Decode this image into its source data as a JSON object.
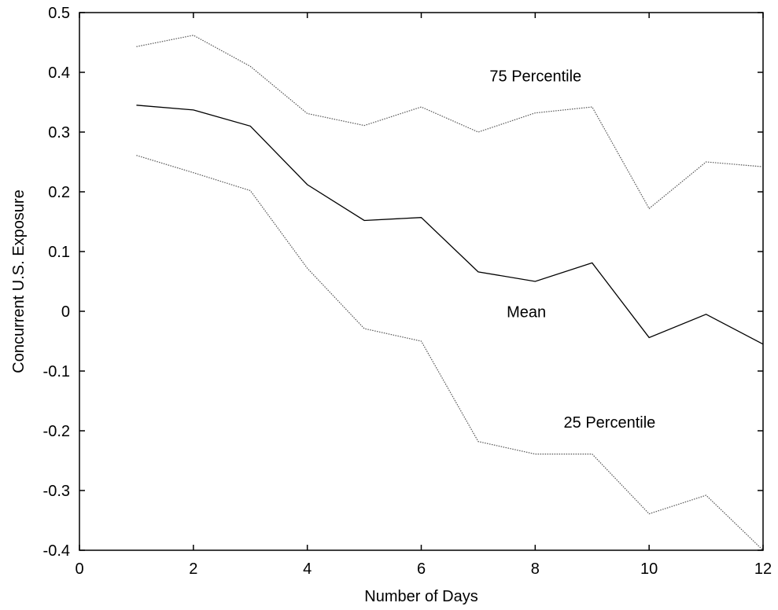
{
  "chart_data": {
    "type": "line",
    "title": "",
    "xlabel": "Number of Days",
    "ylabel": "Concurrent U.S. Exposure",
    "xlim": [
      0,
      12
    ],
    "ylim": [
      -0.4,
      0.5
    ],
    "xticks": [
      0,
      2,
      4,
      6,
      8,
      10,
      12
    ],
    "yticks": [
      0.5,
      0.4,
      0.3,
      0.2,
      0.1,
      0,
      -0.1,
      -0.2,
      -0.3,
      -0.4
    ],
    "grid": false,
    "legend": "none",
    "x": [
      1,
      2,
      3,
      4,
      5,
      6,
      7,
      8,
      9,
      10,
      11,
      12
    ],
    "series": [
      {
        "name": "75 Percentile",
        "style": "dotted",
        "color": "#555555",
        "values": [
          0.443,
          0.462,
          0.41,
          0.331,
          0.311,
          0.342,
          0.3,
          0.332,
          0.342,
          0.172,
          0.25,
          0.242
        ]
      },
      {
        "name": "Mean",
        "style": "solid",
        "color": "#000000",
        "values": [
          0.345,
          0.337,
          0.31,
          0.212,
          0.152,
          0.157,
          0.066,
          0.05,
          0.081,
          -0.044,
          -0.005,
          -0.055
        ]
      },
      {
        "name": "25 Percentile",
        "style": "dotted",
        "color": "#555555",
        "values": [
          0.261,
          0.232,
          0.202,
          0.072,
          -0.029,
          -0.05,
          -0.218,
          -0.239,
          -0.239,
          -0.339,
          -0.308,
          -0.4
        ]
      }
    ],
    "annotations": [
      {
        "text": "75 Percentile",
        "x": 7.2,
        "y": 0.385
      },
      {
        "text": "Mean",
        "x": 7.5,
        "y": -0.01
      },
      {
        "text": "25 Percentile",
        "x": 8.5,
        "y": -0.195
      }
    ]
  }
}
